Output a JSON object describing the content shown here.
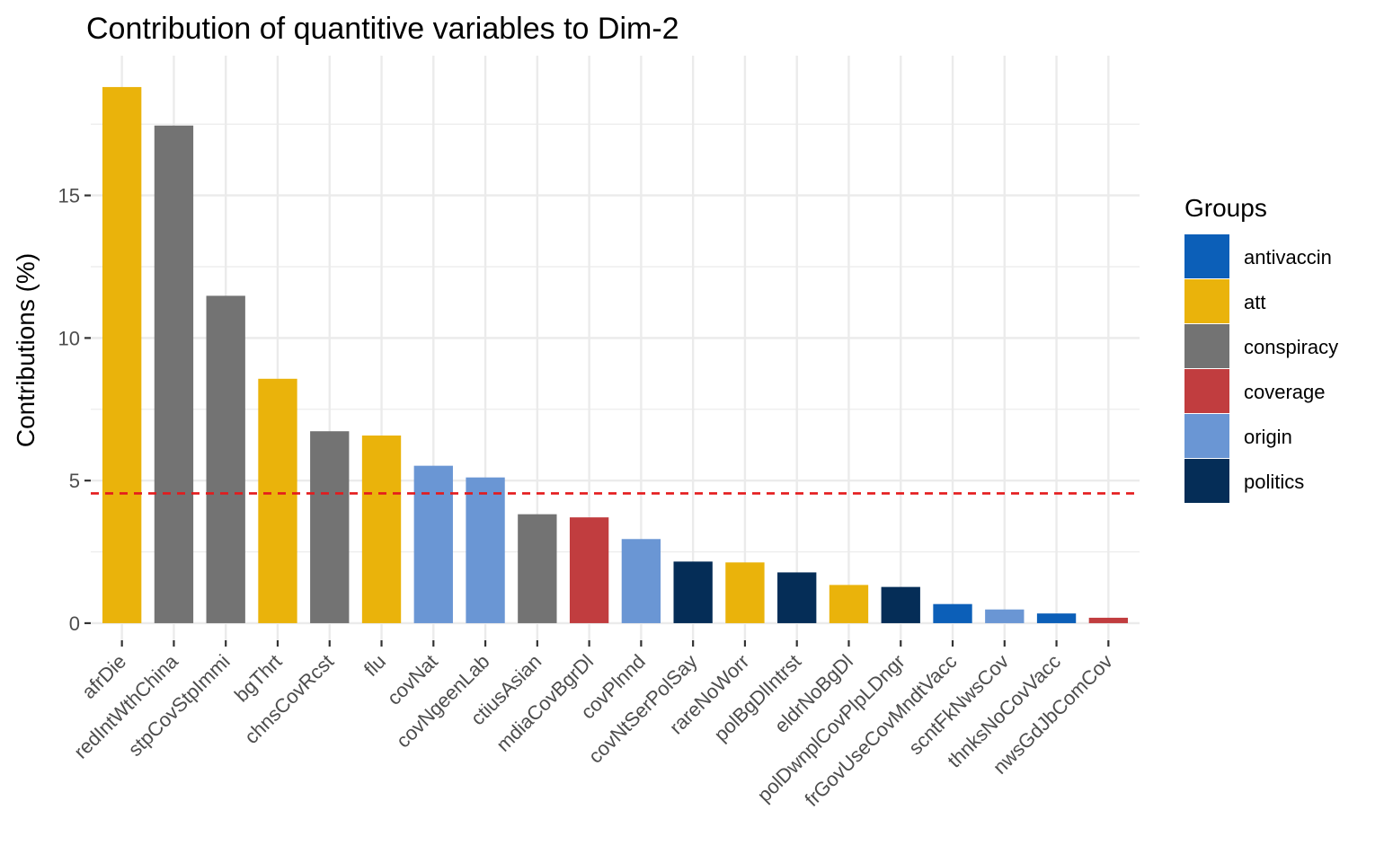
{
  "chart_data": {
    "type": "bar",
    "title": "Contribution of quantitive variables to Dim-2",
    "xlabel": "",
    "ylabel": "Contributions (%)",
    "ylim": [
      -0.6,
      19.9
    ],
    "yticks": [
      0,
      5,
      10,
      15
    ],
    "grid": true,
    "reference_line": {
      "value": 4.55,
      "color": "#e41a1c",
      "style": "dashed"
    },
    "categories": [
      "afrDie",
      "redIntWthChina",
      "stpCovStpImmi",
      "bgThrt",
      "chnsCovRcst",
      "flu",
      "covNat",
      "covNgeenLab",
      "ctiusAsian",
      "mdiaCovBgrDl",
      "covPlnnd",
      "covNtSerPolSay",
      "rareNoWorr",
      "polBgDlIntrst",
      "eldrNoBgDl",
      "polDwnplCovPlpLDngr",
      "frGovUseCovMndtVacc",
      "scntFkNwsCov",
      "thnksNoCovVacc",
      "nwsGdJbComCov"
    ],
    "values": [
      18.8,
      17.45,
      11.48,
      8.57,
      6.73,
      6.58,
      5.52,
      5.11,
      3.82,
      3.71,
      2.95,
      2.16,
      2.13,
      1.78,
      1.34,
      1.27,
      0.67,
      0.48,
      0.34,
      0.19
    ],
    "groups": [
      "att",
      "conspiracy",
      "conspiracy",
      "att",
      "conspiracy",
      "att",
      "origin",
      "origin",
      "conspiracy",
      "coverage",
      "origin",
      "politics",
      "att",
      "politics",
      "att",
      "politics",
      "antivaccin",
      "origin",
      "antivaccin",
      "coverage"
    ],
    "legend": {
      "title": "Groups",
      "placement": "right",
      "entries": [
        {
          "name": "antivaccin",
          "color": "#0c5fb8"
        },
        {
          "name": "att",
          "color": "#eab30b"
        },
        {
          "name": "conspiracy",
          "color": "#737373"
        },
        {
          "name": "coverage",
          "color": "#c13d3f"
        },
        {
          "name": "origin",
          "color": "#6a96d4"
        },
        {
          "name": "politics",
          "color": "#052d57"
        }
      ]
    }
  }
}
